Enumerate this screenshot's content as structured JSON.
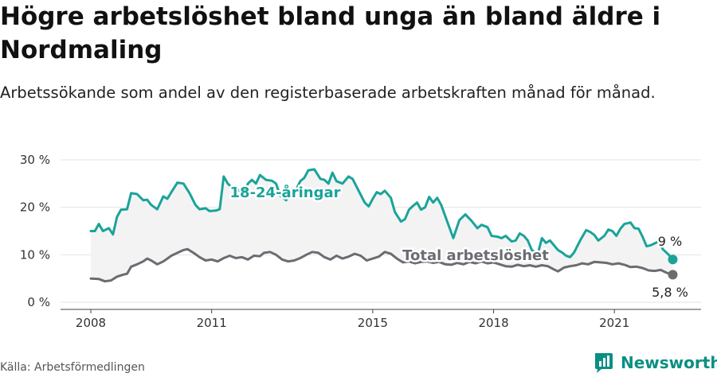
{
  "title": "Högre arbetslöshet bland unga än bland äldre i Nordmaling",
  "subtitle": "Arbetssökande som andel av den registerbaserade arbetskraften månad för månad.",
  "source": "Källa: Arbetsförmedlingen",
  "brand": "Newsworthy",
  "colors": {
    "youth": "#1aa39a",
    "total": "#6c6b72",
    "fill": "#f3f3f3",
    "brand": "#0a8f83"
  },
  "chart_data": {
    "type": "line",
    "ylim": [
      0,
      30
    ],
    "xlim": [
      2008,
      2022.8
    ],
    "yticks": [
      {
        "value": 0,
        "label": "0 %"
      },
      {
        "value": 10,
        "label": "10 %"
      },
      {
        "value": 20,
        "label": "20 %"
      },
      {
        "value": 30,
        "label": "30 %"
      }
    ],
    "xticks": [
      {
        "value": 2008,
        "label": "2008"
      },
      {
        "value": 2011,
        "label": "2011"
      },
      {
        "value": 2015,
        "label": "2015"
      },
      {
        "value": 2018,
        "label": "2018"
      },
      {
        "value": 2021,
        "label": "2021"
      }
    ],
    "grid": true,
    "series": [
      {
        "name": "18-24-åringar",
        "end_label": "9 %",
        "points": [
          [
            2008.0,
            15.0
          ],
          [
            2008.1,
            15.0
          ],
          [
            2008.2,
            16.5
          ],
          [
            2008.3,
            15.0
          ],
          [
            2008.45,
            15.6
          ],
          [
            2008.55,
            14.3
          ],
          [
            2008.65,
            18.0
          ],
          [
            2008.75,
            19.5
          ],
          [
            2008.9,
            19.6
          ],
          [
            2009.0,
            23.0
          ],
          [
            2009.15,
            22.8
          ],
          [
            2009.3,
            21.5
          ],
          [
            2009.4,
            21.6
          ],
          [
            2009.5,
            20.5
          ],
          [
            2009.65,
            19.6
          ],
          [
            2009.8,
            22.3
          ],
          [
            2009.9,
            21.8
          ],
          [
            2010.0,
            23.2
          ],
          [
            2010.15,
            25.2
          ],
          [
            2010.3,
            25.0
          ],
          [
            2010.45,
            23.0
          ],
          [
            2010.6,
            20.5
          ],
          [
            2010.7,
            19.6
          ],
          [
            2010.85,
            19.8
          ],
          [
            2010.95,
            19.2
          ],
          [
            2011.1,
            19.3
          ],
          [
            2011.2,
            19.6
          ],
          [
            2011.3,
            26.5
          ],
          [
            2011.4,
            25.0
          ],
          [
            2011.5,
            24.2
          ],
          [
            2011.65,
            23.8
          ],
          [
            2011.8,
            22.8
          ],
          [
            2011.9,
            25.0
          ],
          [
            2012.0,
            25.8
          ],
          [
            2012.1,
            25.0
          ],
          [
            2012.2,
            26.8
          ],
          [
            2012.35,
            25.8
          ],
          [
            2012.5,
            25.6
          ],
          [
            2012.6,
            25.0
          ],
          [
            2012.7,
            22.5
          ],
          [
            2012.85,
            21.5
          ],
          [
            2013.0,
            24.0
          ],
          [
            2013.1,
            23.8
          ],
          [
            2013.2,
            25.5
          ],
          [
            2013.3,
            26.2
          ],
          [
            2013.4,
            27.8
          ],
          [
            2013.55,
            28.0
          ],
          [
            2013.7,
            26.0
          ],
          [
            2013.8,
            25.8
          ],
          [
            2013.9,
            25.0
          ],
          [
            2014.0,
            27.3
          ],
          [
            2014.1,
            25.5
          ],
          [
            2014.25,
            25.0
          ],
          [
            2014.4,
            26.5
          ],
          [
            2014.5,
            26.0
          ],
          [
            2014.65,
            23.5
          ],
          [
            2014.8,
            21.0
          ],
          [
            2014.9,
            20.2
          ],
          [
            2015.0,
            21.8
          ],
          [
            2015.1,
            23.2
          ],
          [
            2015.2,
            22.8
          ],
          [
            2015.3,
            23.5
          ],
          [
            2015.45,
            22.0
          ],
          [
            2015.55,
            19.0
          ],
          [
            2015.7,
            17.0
          ],
          [
            2015.8,
            17.5
          ],
          [
            2015.9,
            19.5
          ],
          [
            2016.0,
            20.3
          ],
          [
            2016.1,
            21.0
          ],
          [
            2016.2,
            19.5
          ],
          [
            2016.3,
            20.0
          ],
          [
            2016.4,
            22.2
          ],
          [
            2016.5,
            21.0
          ],
          [
            2016.6,
            22.0
          ],
          [
            2016.7,
            20.5
          ],
          [
            2016.85,
            17.0
          ],
          [
            2017.0,
            13.5
          ],
          [
            2017.15,
            17.3
          ],
          [
            2017.3,
            18.5
          ],
          [
            2017.45,
            17.2
          ],
          [
            2017.6,
            15.6
          ],
          [
            2017.7,
            16.3
          ],
          [
            2017.85,
            15.8
          ],
          [
            2017.95,
            14.0
          ],
          [
            2018.1,
            13.8
          ],
          [
            2018.2,
            13.5
          ],
          [
            2018.3,
            14.0
          ],
          [
            2018.45,
            12.8
          ],
          [
            2018.55,
            13.0
          ],
          [
            2018.65,
            14.5
          ],
          [
            2018.75,
            14.0
          ],
          [
            2018.85,
            13.0
          ],
          [
            2018.95,
            11.0
          ],
          [
            2019.1,
            10.2
          ],
          [
            2019.2,
            13.5
          ],
          [
            2019.3,
            12.5
          ],
          [
            2019.4,
            13.0
          ],
          [
            2019.5,
            12.0
          ],
          [
            2019.6,
            11.0
          ],
          [
            2019.7,
            10.5
          ],
          [
            2019.8,
            9.8
          ],
          [
            2019.9,
            9.5
          ],
          [
            2020.0,
            10.5
          ],
          [
            2020.15,
            13.0
          ],
          [
            2020.3,
            15.2
          ],
          [
            2020.4,
            14.8
          ],
          [
            2020.5,
            14.2
          ],
          [
            2020.6,
            13.0
          ],
          [
            2020.75,
            14.0
          ],
          [
            2020.85,
            15.3
          ],
          [
            2020.95,
            15.0
          ],
          [
            2021.05,
            14.0
          ],
          [
            2021.15,
            15.5
          ],
          [
            2021.25,
            16.5
          ],
          [
            2021.4,
            16.8
          ],
          [
            2021.5,
            15.6
          ],
          [
            2021.6,
            15.5
          ],
          [
            2021.7,
            13.8
          ],
          [
            2021.8,
            11.8
          ],
          [
            2021.9,
            12.0
          ],
          [
            2022.1,
            12.8
          ],
          [
            2022.2,
            11.2
          ],
          [
            2022.35,
            10.0
          ],
          [
            2022.45,
            9.0
          ]
        ]
      },
      {
        "name": "Total arbetslöshet",
        "end_label": "5,8 %",
        "points": [
          [
            2008.0,
            5.0
          ],
          [
            2008.2,
            4.9
          ],
          [
            2008.35,
            4.4
          ],
          [
            2008.5,
            4.6
          ],
          [
            2008.65,
            5.4
          ],
          [
            2008.8,
            5.8
          ],
          [
            2008.9,
            6.0
          ],
          [
            2009.0,
            7.5
          ],
          [
            2009.15,
            8.0
          ],
          [
            2009.3,
            8.6
          ],
          [
            2009.4,
            9.2
          ],
          [
            2009.5,
            8.8
          ],
          [
            2009.65,
            8.0
          ],
          [
            2009.8,
            8.6
          ],
          [
            2009.9,
            9.2
          ],
          [
            2010.0,
            9.8
          ],
          [
            2010.15,
            10.4
          ],
          [
            2010.3,
            11.0
          ],
          [
            2010.4,
            11.2
          ],
          [
            2010.55,
            10.4
          ],
          [
            2010.7,
            9.5
          ],
          [
            2010.85,
            8.8
          ],
          [
            2011.0,
            9.0
          ],
          [
            2011.15,
            8.6
          ],
          [
            2011.3,
            9.3
          ],
          [
            2011.45,
            9.8
          ],
          [
            2011.6,
            9.3
          ],
          [
            2011.75,
            9.5
          ],
          [
            2011.9,
            9.0
          ],
          [
            2012.05,
            9.8
          ],
          [
            2012.2,
            9.7
          ],
          [
            2012.3,
            10.4
          ],
          [
            2012.45,
            10.6
          ],
          [
            2012.6,
            10.0
          ],
          [
            2012.75,
            9.0
          ],
          [
            2012.9,
            8.6
          ],
          [
            2013.05,
            8.8
          ],
          [
            2013.2,
            9.3
          ],
          [
            2013.35,
            10.0
          ],
          [
            2013.5,
            10.6
          ],
          [
            2013.65,
            10.4
          ],
          [
            2013.8,
            9.5
          ],
          [
            2013.95,
            9.0
          ],
          [
            2014.1,
            9.8
          ],
          [
            2014.25,
            9.2
          ],
          [
            2014.4,
            9.6
          ],
          [
            2014.55,
            10.2
          ],
          [
            2014.7,
            9.8
          ],
          [
            2014.85,
            8.8
          ],
          [
            2015.0,
            9.2
          ],
          [
            2015.15,
            9.6
          ],
          [
            2015.3,
            10.6
          ],
          [
            2015.45,
            10.2
          ],
          [
            2015.6,
            9.2
          ],
          [
            2015.75,
            8.4
          ],
          [
            2015.9,
            8.6
          ],
          [
            2016.05,
            8.2
          ],
          [
            2016.2,
            8.5
          ],
          [
            2016.35,
            8.6
          ],
          [
            2016.5,
            8.3
          ],
          [
            2016.65,
            8.5
          ],
          [
            2016.8,
            8.0
          ],
          [
            2016.95,
            7.9
          ],
          [
            2017.1,
            8.3
          ],
          [
            2017.25,
            8.0
          ],
          [
            2017.4,
            8.5
          ],
          [
            2017.55,
            8.2
          ],
          [
            2017.7,
            8.6
          ],
          [
            2017.85,
            8.2
          ],
          [
            2018.0,
            8.4
          ],
          [
            2018.15,
            8.0
          ],
          [
            2018.3,
            7.6
          ],
          [
            2018.45,
            7.5
          ],
          [
            2018.6,
            7.9
          ],
          [
            2018.75,
            7.6
          ],
          [
            2018.9,
            7.8
          ],
          [
            2019.05,
            7.5
          ],
          [
            2019.2,
            7.8
          ],
          [
            2019.35,
            7.6
          ],
          [
            2019.5,
            6.9
          ],
          [
            2019.6,
            6.5
          ],
          [
            2019.75,
            7.3
          ],
          [
            2019.9,
            7.6
          ],
          [
            2020.05,
            7.8
          ],
          [
            2020.2,
            8.2
          ],
          [
            2020.35,
            8.0
          ],
          [
            2020.5,
            8.5
          ],
          [
            2020.65,
            8.4
          ],
          [
            2020.8,
            8.3
          ],
          [
            2020.95,
            8.0
          ],
          [
            2021.1,
            8.2
          ],
          [
            2021.25,
            7.9
          ],
          [
            2021.4,
            7.4
          ],
          [
            2021.55,
            7.5
          ],
          [
            2021.7,
            7.2
          ],
          [
            2021.85,
            6.7
          ],
          [
            2022.0,
            6.6
          ],
          [
            2022.15,
            6.8
          ],
          [
            2022.3,
            6.2
          ],
          [
            2022.45,
            5.8
          ]
        ]
      }
    ]
  }
}
